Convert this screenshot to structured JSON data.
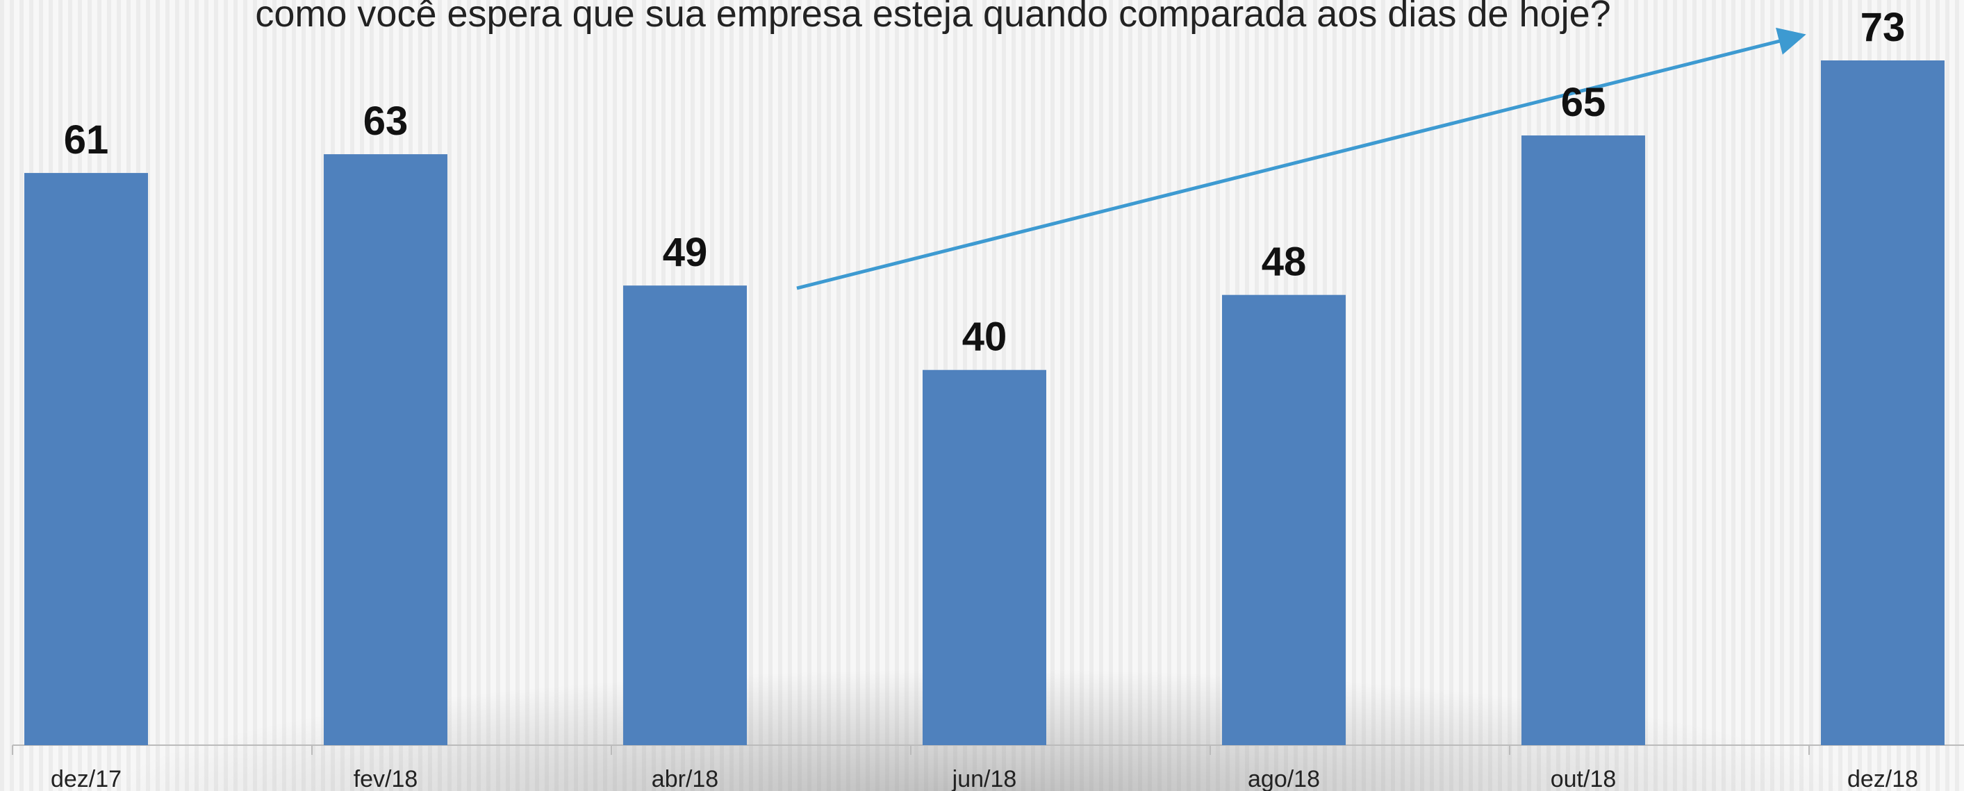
{
  "chart_data": {
    "type": "bar",
    "title": "como você espera que sua empresa esteja quando comparada aos dias de hoje?",
    "categories": [
      "dez/17",
      "fev/18",
      "abr/18",
      "jun/18",
      "ago/18",
      "out/18",
      "dez/18"
    ],
    "values": [
      61,
      63,
      49,
      40,
      48,
      65,
      73
    ],
    "color": "#4f81bd"
  }
}
